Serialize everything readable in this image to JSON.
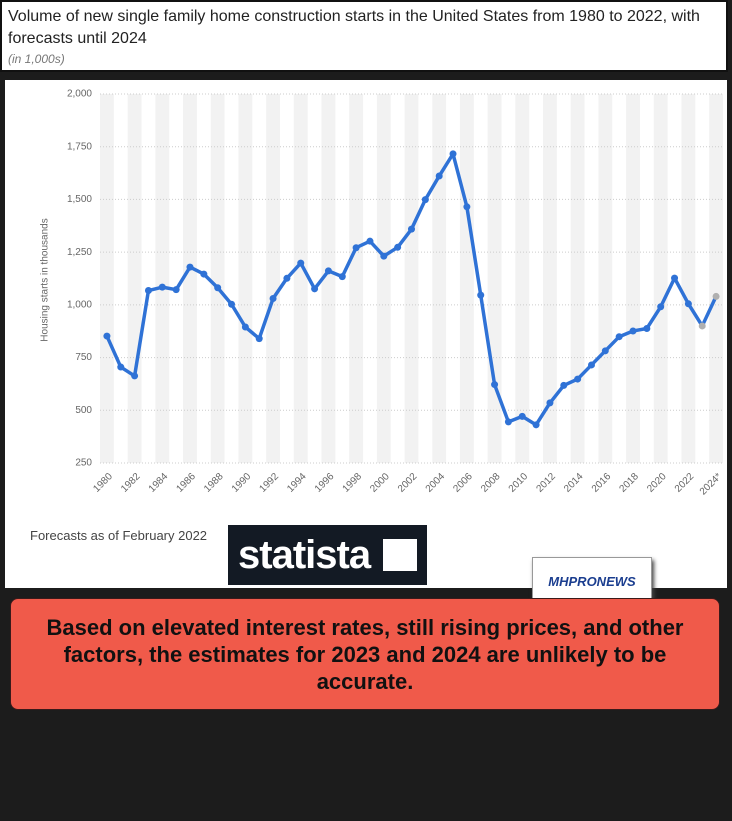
{
  "chart_data": {
    "type": "line",
    "title": "Volume of new single family home construction starts in the United States from 1980 to 2022, with forecasts until 2024",
    "subtitle": "(in 1,000s)",
    "y_label": "Housing starts in thousands",
    "categories": [
      "1980",
      null,
      "1982",
      null,
      "1984",
      null,
      "1986",
      null,
      "1988",
      null,
      "1990",
      null,
      "1992",
      null,
      "1994",
      null,
      "1996",
      null,
      "1998",
      null,
      "2000",
      null,
      "2002",
      null,
      "2004",
      null,
      "2006",
      null,
      "2008",
      null,
      "2010",
      null,
      "2012",
      null,
      "2014",
      null,
      "2016",
      null,
      "2018",
      null,
      "2020",
      null,
      "2022",
      null,
      "2024*"
    ],
    "values": [
      852,
      705,
      663,
      1068,
      1084,
      1072,
      1179,
      1146,
      1081,
      1003,
      895,
      840,
      1030,
      1126,
      1198,
      1076,
      1161,
      1134,
      1271,
      1302,
      1231,
      1273,
      1359,
      1499,
      1611,
      1716,
      1465,
      1046,
      622,
      445,
      471,
      431,
      535,
      618,
      648,
      715,
      782,
      849,
      876,
      888,
      991,
      1127,
      1005,
      900,
      1040
    ],
    "color": "#2f72d6",
    "marker_colors": [
      "#2f72d6",
      "#2f72d6",
      "#2f72d6",
      "#2f72d6",
      "#2f72d6",
      "#2f72d6",
      "#2f72d6",
      "#2f72d6",
      "#2f72d6",
      "#2f72d6",
      "#2f72d6",
      "#2f72d6",
      "#2f72d6",
      "#2f72d6",
      "#2f72d6",
      "#2f72d6",
      "#2f72d6",
      "#2f72d6",
      "#2f72d6",
      "#2f72d6",
      "#2f72d6",
      "#2f72d6",
      "#2f72d6",
      "#2f72d6",
      "#2f72d6",
      "#2f72d6",
      "#2f72d6",
      "#2f72d6",
      "#2f72d6",
      "#2f72d6",
      "#2f72d6",
      "#2f72d6",
      "#2f72d6",
      "#2f72d6",
      "#2f72d6",
      "#2f72d6",
      "#2f72d6",
      "#2f72d6",
      "#2f72d6",
      "#2f72d6",
      "#2f72d6",
      "#2f72d6",
      "#2f72d6",
      "#b0b0b0",
      "#b0b0b0"
    ],
    "ylim": [
      250,
      2000
    ],
    "yticks": [
      250,
      500,
      750,
      {
        "value": 1000,
        "label": "1,000"
      },
      {
        "value": 1250,
        "label": "1,250"
      },
      {
        "value": 1500,
        "label": "1,500"
      },
      {
        "value": 1750,
        "label": "1,750"
      },
      {
        "value": 2000,
        "label": "2,000"
      }
    ],
    "grid": true,
    "note": "Forecasts as of February 2022",
    "logo": "statista",
    "badge": "MHPRONEWS",
    "callout": "Based on elevated interest rates, still rising prices, and other factors, the estimates for 2023 and 2024 are unlikely to be accurate."
  }
}
